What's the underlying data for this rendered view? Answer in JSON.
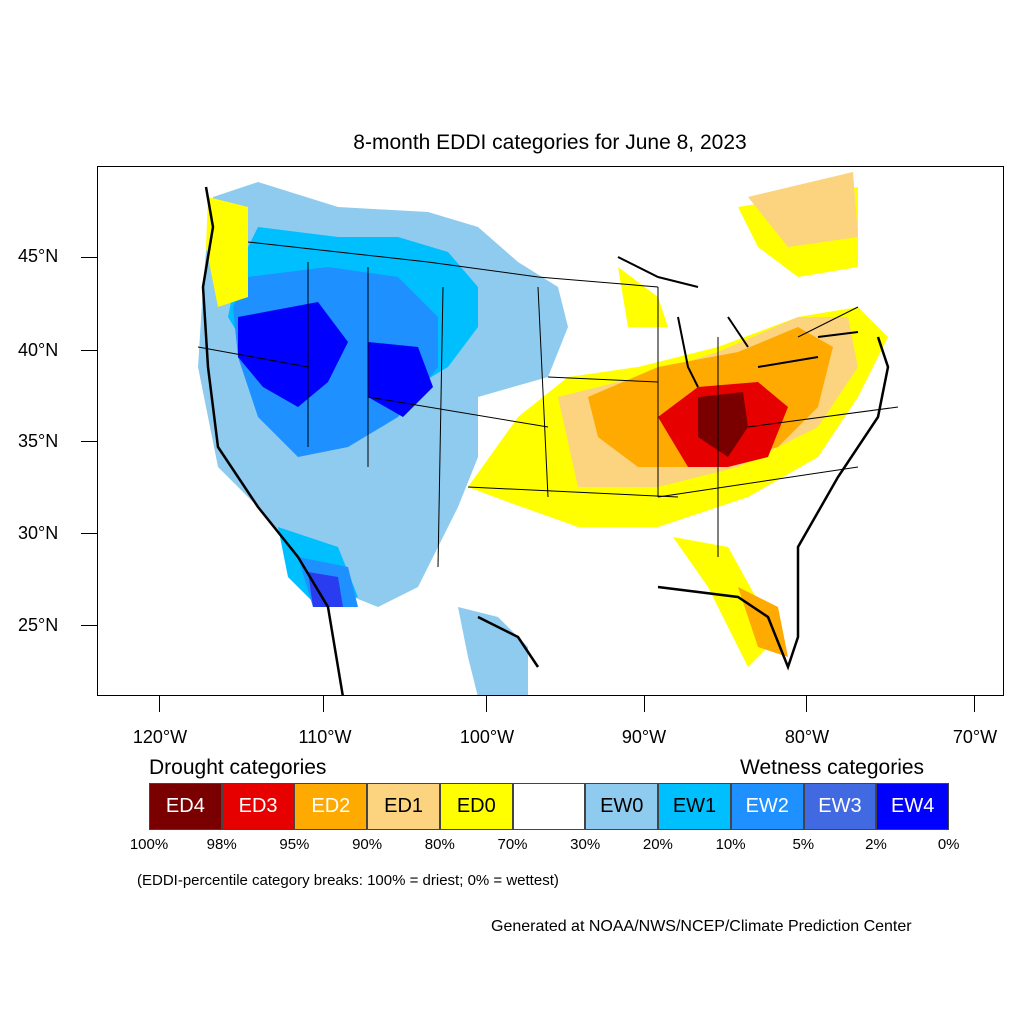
{
  "title": "8-month EDDI categories for June 8, 2023",
  "latitude_labels": [
    "45°N",
    "40°N",
    "35°N",
    "30°N",
    "25°N"
  ],
  "longitude_labels": [
    "120°W",
    "110°W",
    "100°W",
    "90°W",
    "80°W",
    "70°W"
  ],
  "drought_heading": "Drought categories",
  "wetness_heading": "Wetness categories",
  "legend": [
    {
      "label": "ED4",
      "color": "#7a0000",
      "text_color": "#ffffff"
    },
    {
      "label": "ED3",
      "color": "#e60000",
      "text_color": "#ffffff"
    },
    {
      "label": "ED2",
      "color": "#ffaa00",
      "text_color": "#ffffff"
    },
    {
      "label": "ED1",
      "color": "#fcd37f",
      "text_color": "#000000"
    },
    {
      "label": "ED0",
      "color": "#ffff00",
      "text_color": "#000000"
    },
    {
      "label": "",
      "color": "#ffffff",
      "text_color": "#000000"
    },
    {
      "label": "EW0",
      "color": "#8ecbef",
      "text_color": "#000000"
    },
    {
      "label": "EW1",
      "color": "#00bfff",
      "text_color": "#000000"
    },
    {
      "label": "EW2",
      "color": "#1e90ff",
      "text_color": "#ffffff"
    },
    {
      "label": "EW3",
      "color": "#4169e1",
      "text_color": "#ffffff"
    },
    {
      "label": "EW4",
      "color": "#0000ff",
      "text_color": "#ffffff"
    }
  ],
  "percent_breaks": [
    "100%",
    "98%",
    "95%",
    "90%",
    "80%",
    "70%",
    "30%",
    "20%",
    "10%",
    "5%",
    "2%",
    "0%"
  ],
  "footnote": "(EDDI-percentile category breaks: 100% = driest; 0% = wettest)",
  "credit": "Generated at NOAA/NWS/NCEP/Climate Prediction Center"
}
